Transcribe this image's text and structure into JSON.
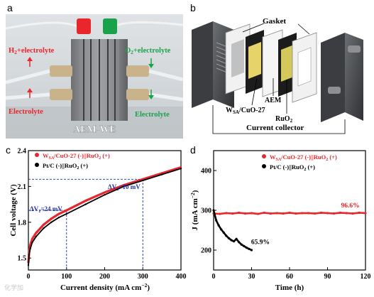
{
  "panels": {
    "a": {
      "letter": "a",
      "labels": {
        "h2": "H2+electrolyte",
        "o2": "O2+electrolyte",
        "electrolyte_left": "Electrolyte",
        "electrolyte_right": "Electrolyte",
        "aem_we": "AEM-WE"
      },
      "colors": {
        "red": "#e8262c",
        "green": "#1aa24a"
      }
    },
    "b": {
      "letter": "b",
      "labels": {
        "gasket": "Gasket",
        "aem": "AEM",
        "wsa": "WSA/CuO-27",
        "ruo2": "RuO2",
        "current_collector": "Current collector"
      }
    },
    "c": {
      "letter": "c"
    },
    "d": {
      "letter": "d"
    }
  },
  "chart_data": [
    {
      "panel": "c",
      "type": "line",
      "xlabel": "Current density (mA cm⁻²)",
      "ylabel": "Cell voltage (V)",
      "xlim": [
        0,
        400
      ],
      "ylim": [
        1.4,
        2.4
      ],
      "xticks": [
        0,
        100,
        200,
        300,
        400
      ],
      "yticks": [
        1.5,
        1.8,
        2.1,
        2.4
      ],
      "legend_position": "top-left",
      "series": [
        {
          "name": "WSA/CuO-27 (-)||RuO2 (+)",
          "color": "#e8262c",
          "x": [
            0,
            2,
            5,
            10,
            20,
            40,
            60,
            80,
            100,
            150,
            200,
            250,
            300,
            350,
            400
          ],
          "y": [
            1.46,
            1.56,
            1.61,
            1.66,
            1.71,
            1.78,
            1.83,
            1.87,
            1.9,
            1.98,
            2.05,
            2.11,
            2.16,
            2.21,
            2.26
          ]
        },
        {
          "name": "Pt/C (-)||RuO2 (+)",
          "color": "#000000",
          "x": [
            0,
            2,
            5,
            10,
            20,
            40,
            60,
            80,
            100,
            150,
            200,
            250,
            300,
            350,
            400
          ],
          "y": [
            1.44,
            1.53,
            1.58,
            1.63,
            1.68,
            1.75,
            1.8,
            1.84,
            1.87,
            1.95,
            2.03,
            2.1,
            2.15,
            2.2,
            2.25
          ]
        }
      ],
      "annotations": [
        {
          "text": "ΔV1=24 mV",
          "x": 100,
          "color": "#1f2fa8"
        },
        {
          "text": "ΔV2=10 mV",
          "x": 300,
          "color": "#1f2fa8"
        }
      ],
      "reference_lines": {
        "x": [
          100,
          300
        ],
        "y_at_100": [
          1.87,
          1.9
        ],
        "y_at_300": [
          2.15,
          2.16
        ]
      }
    },
    {
      "panel": "d",
      "type": "scatter",
      "xlabel": "Time (h)",
      "ylabel": "J (mA cm⁻²)",
      "xlim": [
        0,
        120
      ],
      "ylim": [
        150,
        450
      ],
      "xticks": [
        0,
        30,
        60,
        90,
        120
      ],
      "yticks": [
        200,
        300,
        400
      ],
      "legend_position": "top-right",
      "series": [
        {
          "name": "WSA/CuO-27 (-)||RuO2 (+)",
          "color": "#e8262c",
          "x": [
            0,
            5,
            10,
            15,
            20,
            25,
            30,
            35,
            40,
            45,
            50,
            55,
            60,
            65,
            70,
            75,
            80,
            85,
            90,
            95,
            100,
            105,
            110,
            115,
            120
          ],
          "y": [
            292,
            291,
            293,
            292,
            294,
            292,
            293,
            291,
            294,
            292,
            293,
            292,
            294,
            292,
            293,
            293,
            292,
            294,
            293,
            292,
            294,
            293,
            292,
            294,
            293
          ]
        },
        {
          "name": "Pt/C (-)||RuO2 (+)",
          "color": "#000000",
          "x": [
            0,
            2,
            4,
            6,
            8,
            10,
            12,
            14,
            16,
            18,
            20,
            22,
            24,
            26,
            28,
            30
          ],
          "y": [
            300,
            275,
            262,
            252,
            244,
            236,
            230,
            225,
            222,
            228,
            220,
            214,
            210,
            206,
            203,
            200
          ]
        }
      ],
      "annotations": [
        {
          "text": "96.6%",
          "x": 108,
          "y": 300,
          "color": "#e8262c"
        },
        {
          "text": "65.9%",
          "x": 37,
          "y": 208,
          "color": "#000000"
        }
      ]
    }
  ],
  "watermark": "化学加"
}
